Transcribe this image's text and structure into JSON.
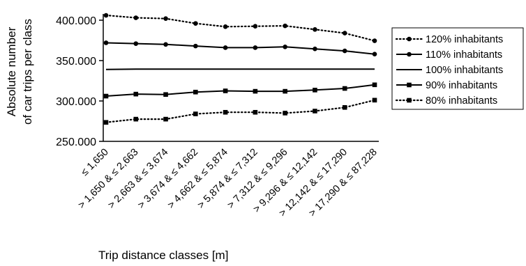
{
  "chart_data": {
    "type": "line",
    "title": "",
    "ylabel": [
      "Absolute number",
      "of car trips per class"
    ],
    "xlabel": "Trip distance classes [m]",
    "ylim": [
      250000,
      400000
    ],
    "yticks": [
      {
        "value": 250000,
        "label": "250.000"
      },
      {
        "value": 300000,
        "label": "300.000"
      },
      {
        "value": 350000,
        "label": "350.000"
      },
      {
        "value": 400000,
        "label": "400.000"
      }
    ],
    "categories": [
      "≤ 1,650",
      "> 1,650 & ≤ 2,663",
      "> 2,663 & ≤ 3,674",
      "> 3,674 & ≤ 4,662",
      "> 4,662 & ≤ 5,874",
      "> 5,874 & ≤ 7,312",
      "> 7,312 & ≤ 9,296",
      "> 9,296 & ≤ 12,142",
      "> 12,142 & ≤ 17,290",
      "> 17,290 & ≤ 87,228"
    ],
    "grid": false,
    "legend_position": "right",
    "series": [
      {
        "name": "120% inhabitants",
        "line": "dotted",
        "marker": "circle",
        "values": [
          406000,
          403000,
          402000,
          396000,
          392000,
          392500,
          393000,
          388500,
          384000,
          374500
        ]
      },
      {
        "name": "110% inhabitants",
        "line": "solid",
        "marker": "circle",
        "values": [
          372000,
          371000,
          370000,
          368000,
          366000,
          366000,
          367000,
          364500,
          362000,
          358000
        ]
      },
      {
        "name": "100% inhabitants",
        "line": "solid",
        "marker": "none",
        "values": [
          339000,
          339500,
          339500,
          339500,
          339500,
          339500,
          339500,
          339500,
          339500,
          339500
        ]
      },
      {
        "name": "90% inhabitants",
        "line": "solid",
        "marker": "square",
        "values": [
          306000,
          308500,
          308000,
          311000,
          312500,
          312000,
          312000,
          313500,
          315500,
          320000
        ]
      },
      {
        "name": "80% inhabitants",
        "line": "dotted",
        "marker": "square",
        "values": [
          273500,
          277500,
          277500,
          284000,
          286000,
          286000,
          285000,
          287500,
          292000,
          301000
        ]
      }
    ]
  }
}
